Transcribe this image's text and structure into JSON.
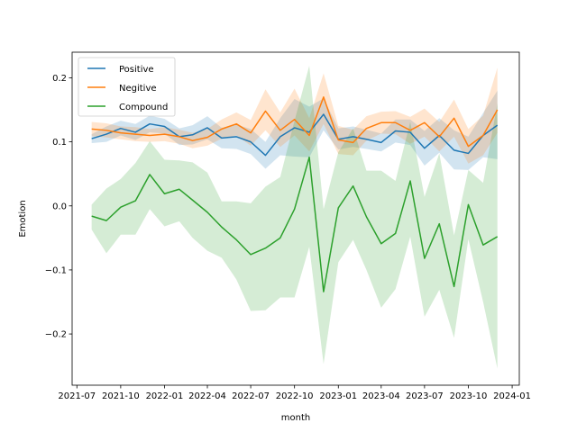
{
  "chart_data": {
    "type": "line",
    "title": "",
    "xlabel": "month",
    "ylabel": "Emotion",
    "xlim": [
      "2021-06-21",
      "2024-01-16"
    ],
    "ylim": [
      -0.28,
      0.24
    ],
    "x_ticks": [
      "2021-07",
      "2021-10",
      "2022-01",
      "2022-04",
      "2022-07",
      "2022-10",
      "2023-01",
      "2023-04",
      "2023-07",
      "2023-10",
      "2024-01"
    ],
    "x_tick_dates": [
      "2021-07-01",
      "2021-10-01",
      "2022-01-01",
      "2022-04-01",
      "2022-07-01",
      "2022-10-01",
      "2023-01-01",
      "2023-04-01",
      "2023-07-01",
      "2023-10-01",
      "2024-01-01"
    ],
    "y_ticks": [
      0.2,
      0.1,
      0.0,
      -0.1,
      -0.2
    ],
    "y_tick_labels": [
      "0.2",
      "0.1",
      "0.0",
      "−0.1",
      "−0.2"
    ],
    "legend_position": "top-left",
    "grid": false,
    "x": [
      "2021-08-01",
      "2021-09-01",
      "2021-10-01",
      "2021-11-01",
      "2021-12-01",
      "2022-01-01",
      "2022-02-01",
      "2022-03-01",
      "2022-04-01",
      "2022-05-01",
      "2022-06-01",
      "2022-07-01",
      "2022-08-01",
      "2022-09-01",
      "2022-10-01",
      "2022-11-01",
      "2022-12-01",
      "2023-01-01",
      "2023-02-01",
      "2023-03-01",
      "2023-04-01",
      "2023-05-01",
      "2023-06-01",
      "2023-07-01",
      "2023-08-01",
      "2023-09-01",
      "2023-10-01",
      "2023-11-01",
      "2023-12-01"
    ],
    "series": [
      {
        "name": "Positive",
        "color": "#1f77b4",
        "values": [
          0.105,
          0.112,
          0.121,
          0.115,
          0.128,
          0.124,
          0.108,
          0.111,
          0.122,
          0.106,
          0.108,
          0.1,
          0.079,
          0.108,
          0.122,
          0.115,
          0.143,
          0.104,
          0.108,
          0.104,
          0.099,
          0.117,
          0.115,
          0.09,
          0.11,
          0.087,
          0.082,
          0.11,
          0.126
        ],
        "lower": [
          0.098,
          0.1,
          0.11,
          0.103,
          0.115,
          0.113,
          0.095,
          0.096,
          0.104,
          0.09,
          0.089,
          0.081,
          0.058,
          0.079,
          0.077,
          0.076,
          0.118,
          0.088,
          0.092,
          0.089,
          0.085,
          0.099,
          0.095,
          0.063,
          0.083,
          0.057,
          0.056,
          0.076,
          0.073
        ],
        "upper": [
          0.112,
          0.124,
          0.133,
          0.128,
          0.141,
          0.136,
          0.121,
          0.126,
          0.14,
          0.122,
          0.127,
          0.12,
          0.1,
          0.137,
          0.167,
          0.155,
          0.168,
          0.121,
          0.124,
          0.119,
          0.113,
          0.135,
          0.135,
          0.117,
          0.137,
          0.118,
          0.108,
          0.145,
          0.18
        ]
      },
      {
        "name": "Negitive",
        "color": "#ff7f0e",
        "values": [
          0.12,
          0.118,
          0.114,
          0.112,
          0.11,
          0.112,
          0.108,
          0.102,
          0.107,
          0.12,
          0.128,
          0.114,
          0.148,
          0.118,
          0.135,
          0.11,
          0.17,
          0.103,
          0.099,
          0.121,
          0.13,
          0.13,
          0.118,
          0.13,
          0.108,
          0.137,
          0.093,
          0.11,
          0.15
        ],
        "lower": [
          0.109,
          0.107,
          0.104,
          0.101,
          0.1,
          0.101,
          0.097,
          0.09,
          0.094,
          0.105,
          0.11,
          0.094,
          0.118,
          0.092,
          0.11,
          0.085,
          0.128,
          0.081,
          0.079,
          0.102,
          0.113,
          0.112,
          0.097,
          0.108,
          0.085,
          0.108,
          0.066,
          0.079,
          0.114
        ],
        "upper": [
          0.131,
          0.129,
          0.124,
          0.123,
          0.12,
          0.123,
          0.119,
          0.114,
          0.12,
          0.135,
          0.146,
          0.134,
          0.182,
          0.146,
          0.183,
          0.137,
          0.207,
          0.125,
          0.119,
          0.14,
          0.147,
          0.148,
          0.139,
          0.152,
          0.131,
          0.166,
          0.12,
          0.141,
          0.216
        ]
      },
      {
        "name": "Compound",
        "color": "#2ca02c",
        "values": [
          -0.016,
          -0.023,
          -0.002,
          0.008,
          0.049,
          0.019,
          0.026,
          0.009,
          -0.01,
          -0.033,
          -0.053,
          -0.076,
          -0.066,
          -0.05,
          -0.005,
          0.076,
          -0.134,
          -0.003,
          0.031,
          -0.017,
          -0.059,
          -0.043,
          0.039,
          -0.082,
          -0.028,
          -0.126,
          0.002,
          -0.061,
          -0.048
        ],
        "lower": [
          -0.037,
          -0.074,
          -0.045,
          -0.045,
          -0.005,
          -0.032,
          -0.024,
          -0.05,
          -0.07,
          -0.081,
          -0.115,
          -0.164,
          -0.163,
          -0.143,
          -0.143,
          -0.064,
          -0.247,
          -0.088,
          -0.053,
          -0.1,
          -0.159,
          -0.13,
          -0.048,
          -0.173,
          -0.131,
          -0.206,
          -0.052,
          -0.15,
          -0.254
        ],
        "upper": [
          0.002,
          0.027,
          0.042,
          0.067,
          0.101,
          0.072,
          0.071,
          0.068,
          0.052,
          0.007,
          0.007,
          0.004,
          0.03,
          0.045,
          0.133,
          0.219,
          -0.005,
          0.084,
          0.121,
          0.055,
          0.055,
          0.039,
          0.131,
          0.014,
          0.082,
          -0.046,
          0.056,
          0.036,
          0.16
        ]
      }
    ]
  }
}
